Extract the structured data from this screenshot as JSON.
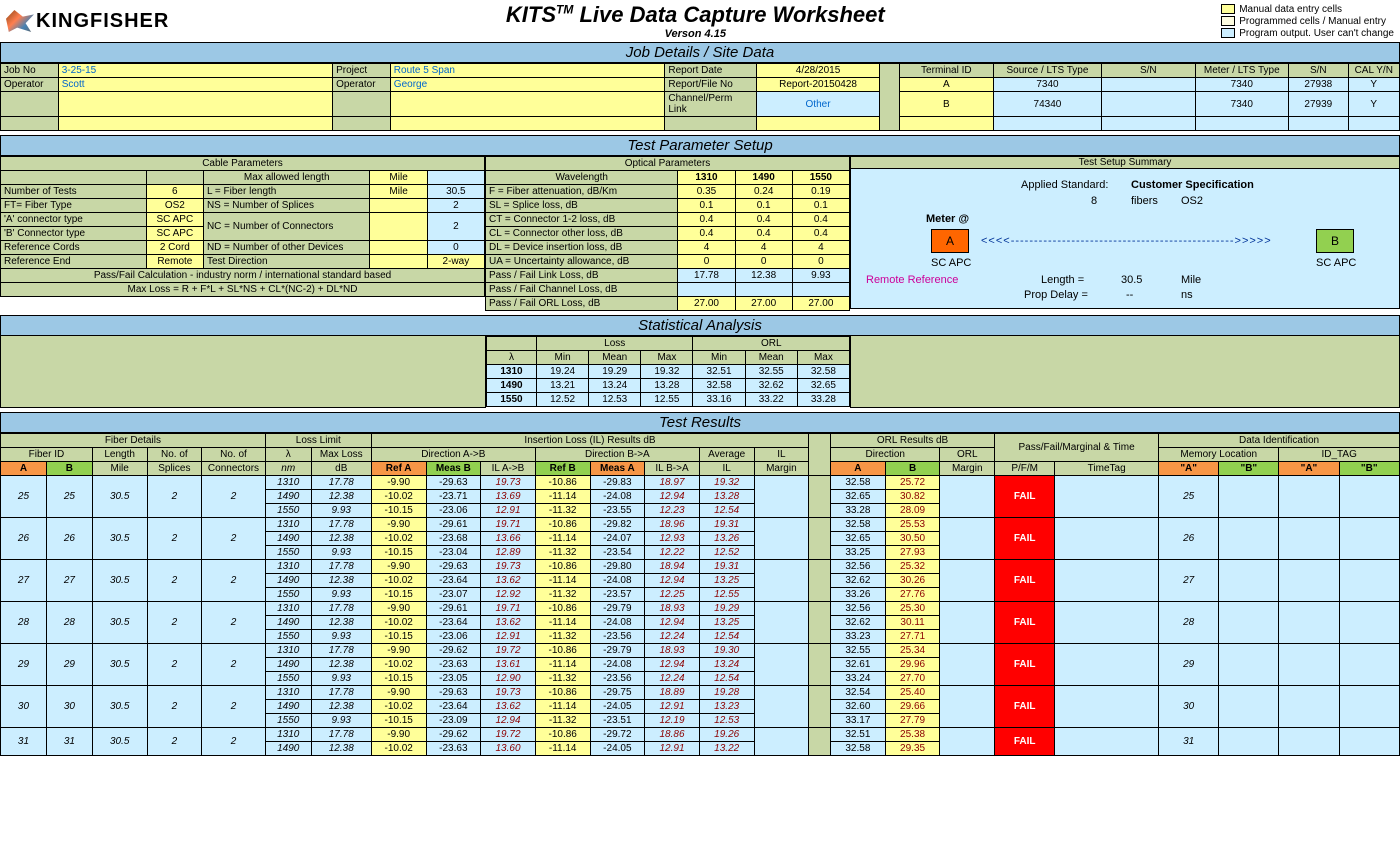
{
  "logo_text": "KINGFISHER",
  "title": "KITS",
  "title_sup": "TM",
  "title_rest": " Live Data Capture Worksheet",
  "version": "Verson 4.15",
  "legend": [
    {
      "color": "#ffff99",
      "text": "Manual data entry cells"
    },
    {
      "color": "#fffde0",
      "text": "Programmed cells / Manual entry"
    },
    {
      "color": "#cceeff",
      "text": "Program output. User can't change"
    }
  ],
  "sections": {
    "job": "Job Details / Site Data",
    "test_param": "Test Parameter Setup",
    "stat": "Statistical Analysis",
    "results": "Test Results"
  },
  "job_details": {
    "labels": {
      "jobno": "Job No",
      "operator": "Operator",
      "project": "Project",
      "operator2": "Operator",
      "repdate": "Report Date",
      "repfile": "Report/File No",
      "chanperm": "Channel/Perm Link",
      "termid": "Terminal ID",
      "srctype": "Source / LTS Type",
      "sn": "S/N",
      "metertype": "Meter / LTS Type",
      "sn2": "S/N",
      "cal": "CAL Y/N"
    },
    "values": {
      "jobno": "3-25-15",
      "operator": "Scott",
      "project": "Route 5 Span",
      "operator2": "George",
      "repdate": "4/28/2015",
      "repfile": "Report-20150428",
      "chanperm": "Other",
      "termA": "A",
      "termB": "B",
      "srcA": "7340",
      "srcB": "74340",
      "snA": "",
      "snB": "",
      "meterA": "7340",
      "meterB": "7340",
      "sn2A": "27938",
      "sn2B": "27939",
      "calA": "Y",
      "calB": "Y"
    }
  },
  "cable_params": {
    "header": "Cable Parameters",
    "maxlen": "Max allowed length",
    "mile": "Mile",
    "rows": [
      {
        "l": "Number of Tests",
        "v": "6",
        "l2": "L = Fiber length",
        "u": "Mile",
        "n": "30.5"
      },
      {
        "l": "FT= Fiber Type",
        "v": "OS2",
        "l2": "NS = Number of Splices",
        "u": "",
        "n": "2"
      },
      {
        "l": "'A' connector type",
        "v": "SC APC",
        "l2": "NC = Number of Connectors",
        "u": "",
        "n": "2",
        "rowspan": true
      },
      {
        "l": "'B' Connector type",
        "v": "SC APC"
      },
      {
        "l": "Reference Cords",
        "v": "2 Cord",
        "l2": "ND = Number of other Devices",
        "u": "",
        "n": "0"
      },
      {
        "l": "Reference End",
        "v": "Remote",
        "l2": "Test Direction",
        "u": "",
        "n": "2-way"
      }
    ],
    "formula1": "Pass/Fail Calculation - industry norm / international standard based",
    "formula2": "Max Loss = R + F*L + SL*NS + CL*(NC-2) + DL*ND"
  },
  "optical_params": {
    "header": "Optical Parameters",
    "wavelength": "Wavelength",
    "wl": [
      "1310",
      "1490",
      "1550"
    ],
    "rows": [
      {
        "l": "F = Fiber attenuation, dB/Km",
        "v": [
          "0.35",
          "0.24",
          "0.19"
        ]
      },
      {
        "l": "SL = Splice loss, dB",
        "v": [
          "0.1",
          "0.1",
          "0.1"
        ]
      },
      {
        "l": "CT = Connector 1-2 loss, dB",
        "v": [
          "0.4",
          "0.4",
          "0.4"
        ]
      },
      {
        "l": "CL = Connector other loss, dB",
        "v": [
          "0.4",
          "0.4",
          "0.4"
        ]
      },
      {
        "l": "DL = Device insertion loss, dB",
        "v": [
          "4",
          "4",
          "4"
        ]
      },
      {
        "l": "UA = Uncertainty allowance, dB",
        "v": [
          "0",
          "0",
          "0"
        ]
      },
      {
        "l": "Pass / Fail Link Loss, dB",
        "v": [
          "17.78",
          "12.38",
          "9.93"
        ],
        "cls": "cyan"
      },
      {
        "l": "Pass / Fail Channel Loss, dB",
        "v": [
          "",
          "",
          ""
        ],
        "cls": "cyan"
      },
      {
        "l": "Pass / Fail ORL Loss, dB",
        "v": [
          "27.00",
          "27.00",
          "27.00"
        ],
        "cls": "yellow"
      }
    ]
  },
  "test_summary": {
    "header": "Test Setup Summary",
    "applied": "Applied Standard:",
    "spec": "Customer Specification",
    "fibers_n": "8",
    "fibers": "fibers",
    "os2": "OS2",
    "meter_at": "Meter @",
    "A": "A",
    "B": "B",
    "scapc": "SC APC",
    "remote": "Remote Reference",
    "length_l": "Length =",
    "length_v": "30.5",
    "length_u": "Mile",
    "prop_l": "Prop Delay =",
    "prop_v": "--",
    "prop_u": "ns"
  },
  "stats": {
    "loss": "Loss",
    "orl": "ORL",
    "lambda": "λ",
    "min": "Min",
    "mean": "Mean",
    "max": "Max",
    "rows": [
      {
        "wl": "1310",
        "lmin": "19.24",
        "lmean": "19.29",
        "lmax": "19.32",
        "omin": "32.51",
        "omean": "32.55",
        "omax": "32.58"
      },
      {
        "wl": "1490",
        "lmin": "13.21",
        "lmean": "13.24",
        "lmax": "13.28",
        "omin": "32.58",
        "omean": "32.62",
        "omax": "32.65"
      },
      {
        "wl": "1550",
        "lmin": "12.52",
        "lmean": "12.53",
        "lmax": "12.55",
        "omin": "33.16",
        "omean": "33.22",
        "omax": "33.28"
      }
    ]
  },
  "results": {
    "headers": {
      "fiber_details": "Fiber Details",
      "loss_limit": "Loss Limit",
      "il_results": "Insertion Loss (IL) Results dB",
      "orl_results": "ORL Results dB",
      "pfm_time": "Pass/Fail/Marginal & Time",
      "data_id": "Data Identification",
      "fiber_id": "Fiber ID",
      "length": "Length",
      "nsplices": "No. of",
      "nconn": "No. of",
      "lambda": "λ",
      "maxloss": "Max Loss",
      "dirAB": "Direction A->B",
      "dirBA": "Direction B->A",
      "avg": "Average",
      "ilmargin": "IL",
      "direction": "Direction",
      "orlmargin": "ORL",
      "pfm": "P/F/M",
      "timetag": "TimeTag",
      "memloc": "Memory Location",
      "idtag": "ID_TAG",
      "A": "A",
      "B": "B",
      "mile": "Mile",
      "splices": "Splices",
      "conn": "Connectors",
      "nm": "nm",
      "db": "dB",
      "refa": "Ref A",
      "measb": "Meas B",
      "ilab": "IL A->B",
      "refb": "Ref B",
      "measa": "Meas A",
      "ilba": "IL B->A",
      "il": "IL",
      "margin": "Margin",
      "qA": "\"A\"",
      "qB": "\"B\""
    },
    "fibers": [
      {
        "a": "25",
        "b": "25",
        "len": "30.5",
        "sp": "2",
        "cn": "2",
        "mem": "25",
        "pfm": "FAIL",
        "rows": [
          {
            "wl": "1310",
            "ml": "17.78",
            "ra": "-9.90",
            "mb": "-29.63",
            "ilab": "19.73",
            "rb": "-10.86",
            "ma": "-29.83",
            "ilba": "18.97",
            "il": "19.32",
            "oa": "32.58",
            "ob": "25.72"
          },
          {
            "wl": "1490",
            "ml": "12.38",
            "ra": "-10.02",
            "mb": "-23.71",
            "ilab": "13.69",
            "rb": "-11.14",
            "ma": "-24.08",
            "ilba": "12.94",
            "il": "13.28",
            "oa": "32.65",
            "ob": "30.82"
          },
          {
            "wl": "1550",
            "ml": "9.93",
            "ra": "-10.15",
            "mb": "-23.06",
            "ilab": "12.91",
            "rb": "-11.32",
            "ma": "-23.55",
            "ilba": "12.23",
            "il": "12.54",
            "oa": "33.28",
            "ob": "28.09"
          }
        ]
      },
      {
        "a": "26",
        "b": "26",
        "len": "30.5",
        "sp": "2",
        "cn": "2",
        "mem": "26",
        "pfm": "FAIL",
        "rows": [
          {
            "wl": "1310",
            "ml": "17.78",
            "ra": "-9.90",
            "mb": "-29.61",
            "ilab": "19.71",
            "rb": "-10.86",
            "ma": "-29.82",
            "ilba": "18.96",
            "il": "19.31",
            "oa": "32.58",
            "ob": "25.53"
          },
          {
            "wl": "1490",
            "ml": "12.38",
            "ra": "-10.02",
            "mb": "-23.68",
            "ilab": "13.66",
            "rb": "-11.14",
            "ma": "-24.07",
            "ilba": "12.93",
            "il": "13.26",
            "oa": "32.65",
            "ob": "30.50"
          },
          {
            "wl": "1550",
            "ml": "9.93",
            "ra": "-10.15",
            "mb": "-23.04",
            "ilab": "12.89",
            "rb": "-11.32",
            "ma": "-23.54",
            "ilba": "12.22",
            "il": "12.52",
            "oa": "33.25",
            "ob": "27.93"
          }
        ]
      },
      {
        "a": "27",
        "b": "27",
        "len": "30.5",
        "sp": "2",
        "cn": "2",
        "mem": "27",
        "pfm": "FAIL",
        "rows": [
          {
            "wl": "1310",
            "ml": "17.78",
            "ra": "-9.90",
            "mb": "-29.63",
            "ilab": "19.73",
            "rb": "-10.86",
            "ma": "-29.80",
            "ilba": "18.94",
            "il": "19.31",
            "oa": "32.56",
            "ob": "25.32"
          },
          {
            "wl": "1490",
            "ml": "12.38",
            "ra": "-10.02",
            "mb": "-23.64",
            "ilab": "13.62",
            "rb": "-11.14",
            "ma": "-24.08",
            "ilba": "12.94",
            "il": "13.25",
            "oa": "32.62",
            "ob": "30.26"
          },
          {
            "wl": "1550",
            "ml": "9.93",
            "ra": "-10.15",
            "mb": "-23.07",
            "ilab": "12.92",
            "rb": "-11.32",
            "ma": "-23.57",
            "ilba": "12.25",
            "il": "12.55",
            "oa": "33.26",
            "ob": "27.76"
          }
        ]
      },
      {
        "a": "28",
        "b": "28",
        "len": "30.5",
        "sp": "2",
        "cn": "2",
        "mem": "28",
        "pfm": "FAIL",
        "rows": [
          {
            "wl": "1310",
            "ml": "17.78",
            "ra": "-9.90",
            "mb": "-29.61",
            "ilab": "19.71",
            "rb": "-10.86",
            "ma": "-29.79",
            "ilba": "18.93",
            "il": "19.29",
            "oa": "32.56",
            "ob": "25.30"
          },
          {
            "wl": "1490",
            "ml": "12.38",
            "ra": "-10.02",
            "mb": "-23.64",
            "ilab": "13.62",
            "rb": "-11.14",
            "ma": "-24.08",
            "ilba": "12.94",
            "il": "13.25",
            "oa": "32.62",
            "ob": "30.11"
          },
          {
            "wl": "1550",
            "ml": "9.93",
            "ra": "-10.15",
            "mb": "-23.06",
            "ilab": "12.91",
            "rb": "-11.32",
            "ma": "-23.56",
            "ilba": "12.24",
            "il": "12.54",
            "oa": "33.23",
            "ob": "27.71"
          }
        ]
      },
      {
        "a": "29",
        "b": "29",
        "len": "30.5",
        "sp": "2",
        "cn": "2",
        "mem": "29",
        "pfm": "FAIL",
        "rows": [
          {
            "wl": "1310",
            "ml": "17.78",
            "ra": "-9.90",
            "mb": "-29.62",
            "ilab": "19.72",
            "rb": "-10.86",
            "ma": "-29.79",
            "ilba": "18.93",
            "il": "19.30",
            "oa": "32.55",
            "ob": "25.34"
          },
          {
            "wl": "1490",
            "ml": "12.38",
            "ra": "-10.02",
            "mb": "-23.63",
            "ilab": "13.61",
            "rb": "-11.14",
            "ma": "-24.08",
            "ilba": "12.94",
            "il": "13.24",
            "oa": "32.61",
            "ob": "29.96"
          },
          {
            "wl": "1550",
            "ml": "9.93",
            "ra": "-10.15",
            "mb": "-23.05",
            "ilab": "12.90",
            "rb": "-11.32",
            "ma": "-23.56",
            "ilba": "12.24",
            "il": "12.54",
            "oa": "33.24",
            "ob": "27.70"
          }
        ]
      },
      {
        "a": "30",
        "b": "30",
        "len": "30.5",
        "sp": "2",
        "cn": "2",
        "mem": "30",
        "pfm": "FAIL",
        "rows": [
          {
            "wl": "1310",
            "ml": "17.78",
            "ra": "-9.90",
            "mb": "-29.63",
            "ilab": "19.73",
            "rb": "-10.86",
            "ma": "-29.75",
            "ilba": "18.89",
            "il": "19.28",
            "oa": "32.54",
            "ob": "25.40"
          },
          {
            "wl": "1490",
            "ml": "12.38",
            "ra": "-10.02",
            "mb": "-23.64",
            "ilab": "13.62",
            "rb": "-11.14",
            "ma": "-24.05",
            "ilba": "12.91",
            "il": "13.23",
            "oa": "32.60",
            "ob": "29.66"
          },
          {
            "wl": "1550",
            "ml": "9.93",
            "ra": "-10.15",
            "mb": "-23.09",
            "ilab": "12.94",
            "rb": "-11.32",
            "ma": "-23.51",
            "ilba": "12.19",
            "il": "12.53",
            "oa": "33.17",
            "ob": "27.79"
          }
        ]
      },
      {
        "a": "31",
        "b": "31",
        "len": "30.5",
        "sp": "2",
        "cn": "2",
        "mem": "31",
        "pfm": "FAIL",
        "rows": [
          {
            "wl": "1310",
            "ml": "17.78",
            "ra": "-9.90",
            "mb": "-29.62",
            "ilab": "19.72",
            "rb": "-10.86",
            "ma": "-29.72",
            "ilba": "18.86",
            "il": "19.26",
            "oa": "32.51",
            "ob": "25.38"
          },
          {
            "wl": "1490",
            "ml": "12.38",
            "ra": "-10.02",
            "mb": "-23.63",
            "ilab": "13.60",
            "rb": "-11.14",
            "ma": "-24.05",
            "ilba": "12.91",
            "il": "13.22",
            "oa": "32.58",
            "ob": "29.35"
          }
        ]
      }
    ]
  }
}
